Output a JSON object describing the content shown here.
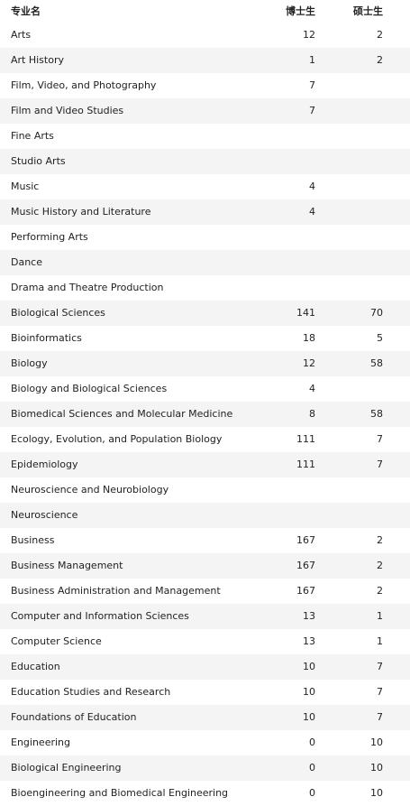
{
  "colors": {
    "accent": "#f0642d",
    "row_alt": "#f4f4f4",
    "row": "#ffffff"
  },
  "header": {
    "name": "专业名",
    "phd": "博士生",
    "ms": "硕士生"
  },
  "rows": [
    {
      "name": "Arts",
      "phd": "12",
      "ms": "2"
    },
    {
      "name": "Art History",
      "phd": "1",
      "ms": "2"
    },
    {
      "name": "Film, Video, and Photography",
      "phd": "7",
      "ms": ""
    },
    {
      "name": "Film and Video Studies",
      "phd": "7",
      "ms": ""
    },
    {
      "name": "Fine Arts",
      "phd": "",
      "ms": ""
    },
    {
      "name": "Studio Arts",
      "phd": "",
      "ms": ""
    },
    {
      "name": "Music",
      "phd": "4",
      "ms": ""
    },
    {
      "name": "Music History and Literature",
      "phd": "4",
      "ms": ""
    },
    {
      "name": "Performing Arts",
      "phd": "",
      "ms": ""
    },
    {
      "name": "Dance",
      "phd": "",
      "ms": ""
    },
    {
      "name": "Drama and Theatre Production",
      "phd": "",
      "ms": ""
    },
    {
      "name": "Biological Sciences",
      "phd": "141",
      "ms": "70"
    },
    {
      "name": "Bioinformatics",
      "phd": "18",
      "ms": "5"
    },
    {
      "name": "Biology",
      "phd": "12",
      "ms": "58"
    },
    {
      "name": "Biology and Biological Sciences",
      "phd": "4",
      "ms": ""
    },
    {
      "name": "Biomedical Sciences and Molecular Medicine",
      "phd": "8",
      "ms": "58"
    },
    {
      "name": "Ecology, Evolution, and Population Biology",
      "phd": "111",
      "ms": "7"
    },
    {
      "name": "Epidemiology",
      "phd": "111",
      "ms": "7"
    },
    {
      "name": "Neuroscience and Neurobiology",
      "phd": "",
      "ms": ""
    },
    {
      "name": "Neuroscience",
      "phd": "",
      "ms": ""
    },
    {
      "name": "Business",
      "phd": "167",
      "ms": "2"
    },
    {
      "name": "Business Management",
      "phd": "167",
      "ms": "2"
    },
    {
      "name": "Business Administration and Management",
      "phd": "167",
      "ms": "2"
    },
    {
      "name": "Computer and Information Sciences",
      "phd": "13",
      "ms": "1"
    },
    {
      "name": "Computer Science",
      "phd": "13",
      "ms": "1"
    },
    {
      "name": "Education",
      "phd": "10",
      "ms": "7"
    },
    {
      "name": "Education Studies and Research",
      "phd": "10",
      "ms": "7"
    },
    {
      "name": "Foundations of Education",
      "phd": "10",
      "ms": "7"
    },
    {
      "name": "Engineering",
      "phd": "0",
      "ms": "10"
    },
    {
      "name": "Biological Engineering",
      "phd": "0",
      "ms": "10"
    },
    {
      "name": "Bioengineering and Biomedical Engineering",
      "phd": "0",
      "ms": "10"
    }
  ]
}
